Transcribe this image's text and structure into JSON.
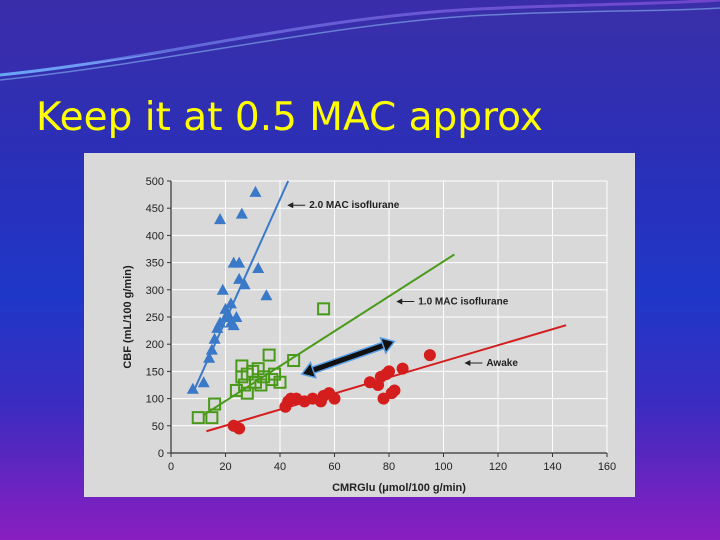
{
  "slide": {
    "title": "Keep it at 0.5 MAC approx"
  },
  "colors": {
    "title": "#ffff00",
    "triangles": "#3a78c8",
    "squares": "#4a9a1a",
    "circles": "#d41e1e",
    "arrow": "#1a3a6a"
  },
  "chart_data": {
    "type": "scatter",
    "xlabel": "CMRGlu (μmol/100 g/min)",
    "ylabel": "CBF (mL/100 g/min)",
    "xlim": [
      0,
      160
    ],
    "ylim": [
      0,
      500
    ],
    "x_ticks": [
      0,
      20,
      40,
      60,
      80,
      100,
      120,
      140,
      160
    ],
    "y_ticks": [
      0,
      50,
      100,
      150,
      200,
      250,
      300,
      350,
      400,
      450,
      500
    ],
    "grid": true,
    "series": [
      {
        "marker": "triangle",
        "points": [
          [
            8,
            118
          ],
          [
            12,
            130
          ],
          [
            18,
            430
          ],
          [
            14,
            175
          ],
          [
            15,
            190
          ],
          [
            16,
            210
          ],
          [
            17,
            230
          ],
          [
            18,
            240
          ],
          [
            20,
            250
          ],
          [
            21,
            255
          ],
          [
            22,
            240
          ],
          [
            23,
            235
          ],
          [
            22,
            275
          ],
          [
            23,
            350
          ],
          [
            25,
            350
          ],
          [
            26,
            440
          ],
          [
            31,
            480
          ],
          [
            32,
            340
          ],
          [
            35,
            290
          ],
          [
            25,
            320
          ],
          [
            27,
            310
          ],
          [
            19,
            300
          ],
          [
            24,
            250
          ],
          [
            20,
            265
          ]
        ]
      },
      {
        "marker": "square",
        "points": [
          [
            10,
            65
          ],
          [
            15,
            65
          ],
          [
            16,
            90
          ],
          [
            24,
            115
          ],
          [
            26,
            160
          ],
          [
            26,
            140
          ],
          [
            27,
            125
          ],
          [
            28,
            110
          ],
          [
            28,
            145
          ],
          [
            30,
            150
          ],
          [
            31,
            130
          ],
          [
            32,
            155
          ],
          [
            33,
            125
          ],
          [
            34,
            140
          ],
          [
            36,
            180
          ],
          [
            37,
            135
          ],
          [
            38,
            145
          ],
          [
            40,
            130
          ],
          [
            45,
            170
          ],
          [
            56,
            265
          ]
        ]
      },
      {
        "marker": "circle",
        "points": [
          [
            23,
            50
          ],
          [
            25,
            45
          ],
          [
            42,
            85
          ],
          [
            43,
            95
          ],
          [
            44,
            100
          ],
          [
            46,
            100
          ],
          [
            49,
            95
          ],
          [
            52,
            100
          ],
          [
            55,
            95
          ],
          [
            56,
            105
          ],
          [
            58,
            110
          ],
          [
            60,
            100
          ],
          [
            73,
            130
          ],
          [
            76,
            125
          ],
          [
            77,
            140
          ],
          [
            78,
            100
          ],
          [
            79,
            145
          ],
          [
            80,
            150
          ],
          [
            81,
            110
          ],
          [
            82,
            115
          ],
          [
            85,
            155
          ],
          [
            95,
            180
          ]
        ]
      }
    ],
    "fit_lines": [
      {
        "marker": "triangle",
        "from": [
          8,
          110
        ],
        "to": [
          43,
          500
        ]
      },
      {
        "marker": "square",
        "from": [
          12,
          70
        ],
        "to": [
          104,
          365
        ]
      },
      {
        "marker": "circle",
        "from": [
          13,
          40
        ],
        "to": [
          145,
          235
        ]
      }
    ],
    "annotations": [
      {
        "text": "2.0 MAC isoflurane",
        "x": 50,
        "y": 450
      },
      {
        "text": "1.0 MAC isoflurane",
        "x": 90,
        "y": 273
      },
      {
        "text": "Awake",
        "x": 115,
        "y": 160
      }
    ],
    "overlay_arrow": {
      "from": [
        48,
        145
      ],
      "to": [
        82,
        205
      ]
    }
  }
}
